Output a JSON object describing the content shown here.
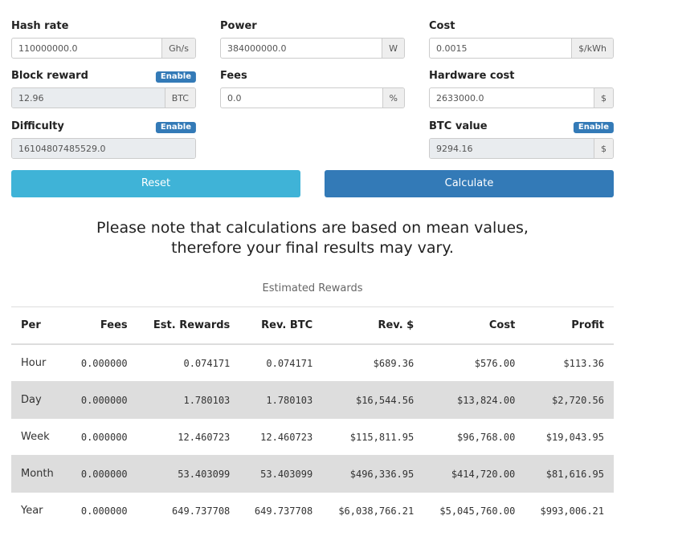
{
  "form": {
    "fields": [
      {
        "label": "Hash rate",
        "value": "110000000.0",
        "unit": "Gh/s"
      },
      {
        "label": "Power",
        "value": "384000000.0",
        "unit": "W"
      },
      {
        "label": "Cost",
        "value": "0.0015",
        "unit": "$/kWh"
      },
      {
        "label": "Block reward",
        "value": "12.96",
        "unit": "BTC",
        "toggle": "Enable"
      },
      {
        "label": "Fees",
        "value": "0.0",
        "unit": "%"
      },
      {
        "label": "Hardware cost",
        "value": "2633000.0",
        "unit": "$"
      },
      {
        "label": "Difficulty",
        "value": "16104807485529.0",
        "toggle": "Enable"
      },
      {
        "label": "BTC value",
        "value": "9294.16",
        "unit": "$",
        "toggle": "Enable"
      }
    ],
    "buttons": [
      "Reset",
      "Calculate"
    ]
  },
  "notice": [
    "Please note that calculations are based on mean values,",
    "therefore your final results may vary."
  ],
  "table": {
    "caption": "Estimated Rewards",
    "header": [
      "Per",
      "Fees",
      "Est. Rewards",
      "Rev. BTC",
      "Rev. $",
      "Cost",
      "Profit"
    ],
    "rows": [
      [
        "Hour",
        "0.000000",
        "0.074171",
        "0.074171",
        "$689.36",
        "$576.00",
        "$113.36"
      ],
      [
        "Day",
        "0.000000",
        "1.780103",
        "1.780103",
        "$16,544.56",
        "$13,824.00",
        "$2,720.56"
      ],
      [
        "Week",
        "0.000000",
        "12.460723",
        "12.460723",
        "$115,811.95",
        "$96,768.00",
        "$19,043.95"
      ],
      [
        "Month",
        "0.000000",
        "53.403099",
        "53.403099",
        "$496,336.95",
        "$414,720.00",
        "$81,616.95"
      ],
      [
        "Year",
        "0.000000",
        "649.737708",
        "649.737708",
        "$6,038,766.21",
        "$5,045,760.00",
        "$993,006.21"
      ]
    ]
  }
}
